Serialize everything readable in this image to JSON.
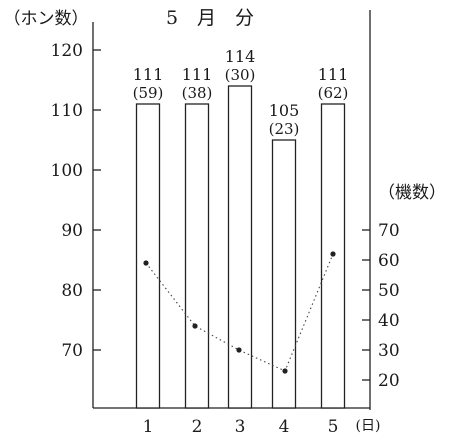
{
  "chart_data": {
    "type": "bar",
    "title": "5　月　分",
    "left_axis_label": "（ホン数）",
    "right_axis_label": "（機数）",
    "x_unit": "(日)",
    "categories": [
      "1",
      "2",
      "3",
      "4",
      "5"
    ],
    "series": [
      {
        "values": [
          111,
          111,
          114,
          105,
          111
        ],
        "axis": "left",
        "style": "bar"
      },
      {
        "values": [
          59,
          38,
          30,
          23,
          62
        ],
        "axis": "right",
        "style": "dotted-line"
      }
    ],
    "bar_labels": [
      "111",
      "111",
      "114",
      "105",
      "111"
    ],
    "count_labels": [
      "(59)",
      "(38)",
      "(30)",
      "(23)",
      "(62)"
    ],
    "left_ticks": [
      "120",
      "110",
      "100",
      "90",
      "80",
      "70"
    ],
    "right_ticks": [
      "70",
      "60",
      "50",
      "40",
      "30",
      "20"
    ],
    "ylim_left": [
      65,
      125
    ],
    "ylim_right": [
      15,
      75
    ]
  }
}
